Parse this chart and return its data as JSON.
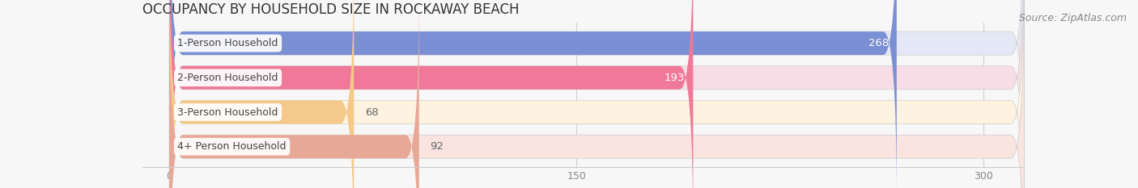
{
  "title": "OCCUPANCY BY HOUSEHOLD SIZE IN ROCKAWAY BEACH",
  "source_text": "Source: ZipAtlas.com",
  "categories": [
    "1-Person Household",
    "2-Person Household",
    "3-Person Household",
    "4+ Person Household"
  ],
  "values": [
    268,
    193,
    68,
    92
  ],
  "bar_colors": [
    "#7b8fd4",
    "#f07898",
    "#f5c98a",
    "#e8a898"
  ],
  "bar_bg_colors": [
    "#e4e7f5",
    "#f8dde6",
    "#fdf3e0",
    "#f9e4e0"
  ],
  "label_colors": [
    "#ffffff",
    "#ffffff",
    "#888888",
    "#888888"
  ],
  "xlim": [
    -10,
    315
  ],
  "xticks": [
    0,
    150,
    300
  ],
  "title_fontsize": 12,
  "source_fontsize": 9,
  "bar_label_fontsize": 9.5,
  "category_fontsize": 9,
  "figsize": [
    14.06,
    2.33
  ],
  "dpi": 100,
  "bg_color": "#f7f7f7"
}
